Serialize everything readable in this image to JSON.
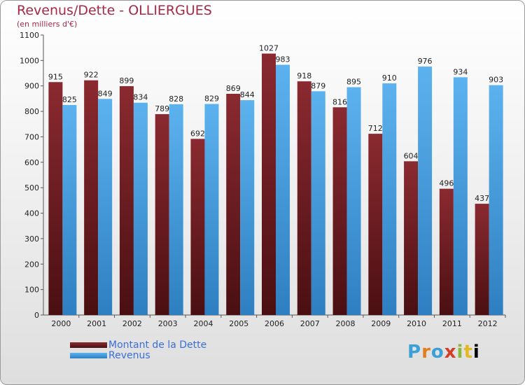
{
  "header": {
    "title": "Revenus/Dette - OLLIERGUES",
    "subtitle": "(en milliers d'€)"
  },
  "legend": {
    "debt_label": "Montant de la Dette",
    "revenue_label": "Revenus"
  },
  "logo": {
    "text": "Proxiti"
  },
  "colors": {
    "debt": "#7a1f24",
    "debt_dark": "#4a0f12",
    "revenue": "#56a9e6",
    "revenue_dark": "#2e7fc1",
    "axis": "#555555",
    "title": "#a52945"
  },
  "chart_data": {
    "type": "bar",
    "title": "Revenus/Dette - OLLIERGUES",
    "subtitle": "(en milliers d'€)",
    "xlabel": "",
    "ylabel": "",
    "ylim": [
      0,
      1100
    ],
    "yticks": [
      0,
      100,
      200,
      300,
      400,
      500,
      600,
      700,
      800,
      900,
      1000,
      1100
    ],
    "grid": false,
    "legend_position": "bottom-left",
    "categories": [
      "2000",
      "2001",
      "2002",
      "2003",
      "2004",
      "2005",
      "2006",
      "2007",
      "2008",
      "2009",
      "2010",
      "2011",
      "2012"
    ],
    "series": [
      {
        "name": "Montant de la Dette",
        "values": [
          915,
          922,
          899,
          789,
          692,
          869,
          1027,
          918,
          816,
          712,
          604,
          496,
          437
        ]
      },
      {
        "name": "Revenus",
        "values": [
          825,
          849,
          834,
          828,
          829,
          844,
          983,
          879,
          895,
          910,
          976,
          934,
          903
        ]
      }
    ]
  }
}
